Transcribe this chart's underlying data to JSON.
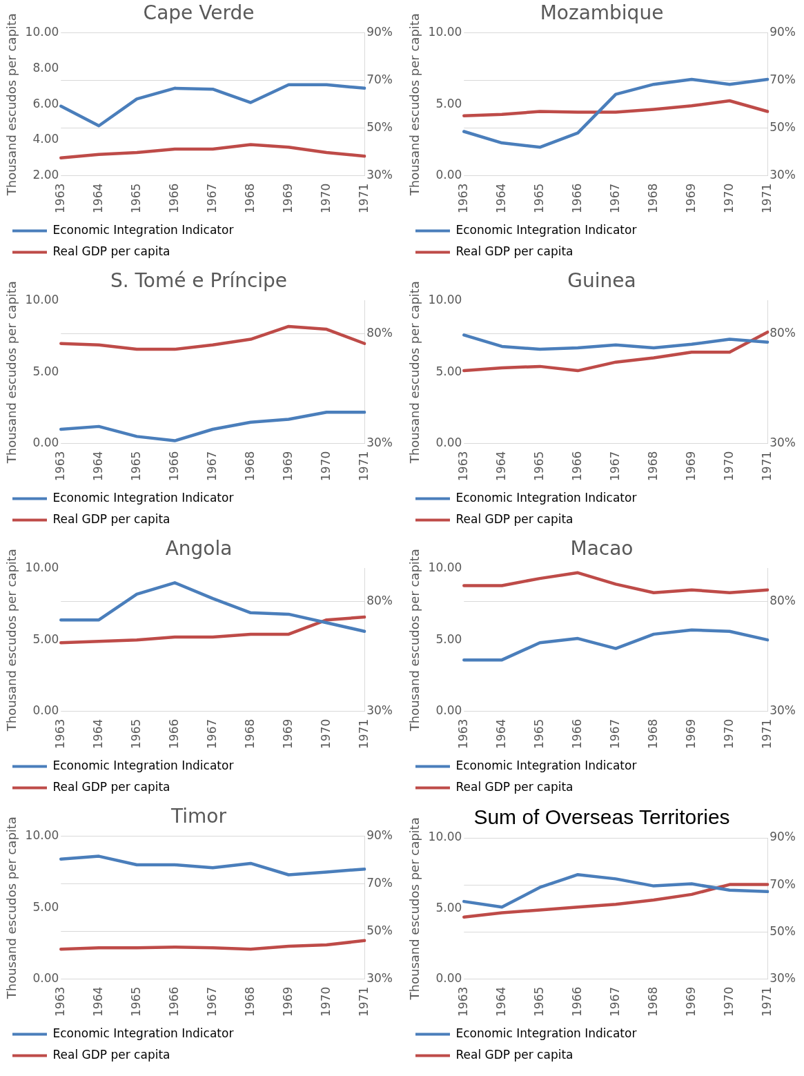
{
  "chart_data": [
    {
      "type": "line",
      "title": "Cape Verde",
      "ylabel": "Thousand escudos per capita",
      "categories": [
        "1963",
        "1964",
        "1965",
        "1966",
        "1967",
        "1968",
        "1969",
        "1970",
        "1971"
      ],
      "series": [
        {
          "name": "Economic Integration Indicator",
          "color": "#4a7ebb",
          "values": [
            5.9,
            4.8,
            6.3,
            6.9,
            6.85,
            6.1,
            7.1,
            7.1,
            6.9
          ]
        },
        {
          "name": "Real GDP per capita",
          "color": "#be4b48",
          "values": [
            3.0,
            3.2,
            3.3,
            3.5,
            3.5,
            3.75,
            3.6,
            3.3,
            3.1
          ]
        }
      ],
      "ylim": [
        2,
        10
      ],
      "yticks": [
        {
          "value": 2,
          "label": "2.00"
        },
        {
          "value": 4,
          "label": "4.00"
        },
        {
          "value": 6,
          "label": "6.00"
        },
        {
          "value": 8,
          "label": "8.00"
        },
        {
          "value": 10,
          "label": "10.00"
        }
      ],
      "y2lim": [
        30,
        90
      ],
      "y2ticks": [
        {
          "value": 30,
          "label": "30%"
        },
        {
          "value": 50,
          "label": "50%"
        },
        {
          "value": 70,
          "label": "70%"
        },
        {
          "value": 90,
          "label": "90%"
        }
      ],
      "grid": true,
      "legend": "bottom",
      "marker": "none",
      "line_style": "solid"
    },
    {
      "type": "line",
      "title": "Mozambique",
      "ylabel": "Thousand escudos per capita",
      "categories": [
        "1963",
        "1964",
        "1965",
        "1966",
        "1967",
        "1968",
        "1969",
        "1970",
        "1971"
      ],
      "series": [
        {
          "name": "Economic Integration Indicator",
          "color": "#4a7ebb",
          "values": [
            3.1,
            2.3,
            2.0,
            3.0,
            5.7,
            6.4,
            6.75,
            6.4,
            6.75
          ]
        },
        {
          "name": "Real GDP per capita",
          "color": "#be4b48",
          "values": [
            4.2,
            4.3,
            4.5,
            4.45,
            4.45,
            4.65,
            4.9,
            5.25,
            4.5
          ]
        }
      ],
      "ylim": [
        0,
        10
      ],
      "yticks": [
        {
          "value": 0,
          "label": "0.00"
        },
        {
          "value": 5,
          "label": "5.00"
        },
        {
          "value": 10,
          "label": "10.00"
        }
      ],
      "y2lim": [
        30,
        90
      ],
      "y2ticks": [
        {
          "value": 30,
          "label": "30%"
        },
        {
          "value": 50,
          "label": "50%"
        },
        {
          "value": 70,
          "label": "70%"
        },
        {
          "value": 90,
          "label": "90%"
        }
      ],
      "grid": true,
      "legend": "bottom",
      "marker": "none",
      "line_style": "solid"
    },
    {
      "type": "line",
      "title": "S. Tomé e Príncipe",
      "ylabel": "Thousand escudos per capita",
      "categories": [
        "1963",
        "1964",
        "1965",
        "1966",
        "1967",
        "1968",
        "1969",
        "1970",
        "1971"
      ],
      "series": [
        {
          "name": "Economic Integration Indicator",
          "color": "#4a7ebb",
          "values": [
            1.0,
            1.2,
            0.5,
            0.2,
            1.0,
            1.5,
            1.7,
            2.2,
            2.2
          ]
        },
        {
          "name": "Real GDP per capita",
          "color": "#be4b48",
          "values": [
            7.0,
            6.9,
            6.6,
            6.6,
            6.9,
            7.3,
            8.2,
            8.0,
            7.0
          ]
        }
      ],
      "ylim": [
        0,
        10
      ],
      "yticks": [
        {
          "value": 0,
          "label": "0.00"
        },
        {
          "value": 5,
          "label": "5.00"
        },
        {
          "value": 10,
          "label": "10.00"
        }
      ],
      "y2lim": [
        30,
        95
      ],
      "y2ticks": [
        {
          "value": 30,
          "label": "30%"
        },
        {
          "value": 80,
          "label": "80%"
        }
      ],
      "grid": true,
      "legend": "bottom",
      "marker": "none",
      "line_style": "solid"
    },
    {
      "type": "line",
      "title": "Guinea",
      "ylabel": "Thousand escudos per capita",
      "categories": [
        "1963",
        "1964",
        "1965",
        "1966",
        "1967",
        "1968",
        "1969",
        "1970",
        "1971"
      ],
      "series": [
        {
          "name": "Economic Integration Indicator",
          "color": "#4a7ebb",
          "values": [
            7.6,
            6.8,
            6.6,
            6.7,
            6.9,
            6.7,
            6.95,
            7.3,
            7.1
          ]
        },
        {
          "name": "Real GDP per capita",
          "color": "#be4b48",
          "values": [
            5.1,
            5.3,
            5.4,
            5.1,
            5.7,
            6.0,
            6.4,
            6.4,
            7.8
          ]
        }
      ],
      "ylim": [
        0,
        10
      ],
      "yticks": [
        {
          "value": 0,
          "label": "0.00"
        },
        {
          "value": 5,
          "label": "5.00"
        },
        {
          "value": 10,
          "label": "10.00"
        }
      ],
      "y2lim": [
        30,
        95
      ],
      "y2ticks": [
        {
          "value": 30,
          "label": "30%"
        },
        {
          "value": 80,
          "label": "80%"
        }
      ],
      "grid": true,
      "legend": "bottom",
      "marker": "none",
      "line_style": "solid"
    },
    {
      "type": "line",
      "title": "Angola",
      "ylabel": "Thousand escudos per capita",
      "categories": [
        "1963",
        "1964",
        "1965",
        "1966",
        "1967",
        "1968",
        "1969",
        "1970",
        "1971"
      ],
      "series": [
        {
          "name": "Economic Integration Indicator",
          "color": "#4a7ebb",
          "values": [
            6.4,
            6.4,
            8.2,
            9.0,
            7.9,
            6.9,
            6.8,
            6.2,
            5.6
          ]
        },
        {
          "name": "Real GDP per capita",
          "color": "#be4b48",
          "values": [
            4.8,
            4.9,
            5.0,
            5.2,
            5.2,
            5.4,
            5.4,
            6.4,
            6.6
          ]
        }
      ],
      "ylim": [
        0,
        10
      ],
      "yticks": [
        {
          "value": 0,
          "label": "0.00"
        },
        {
          "value": 5,
          "label": "5.00"
        },
        {
          "value": 10,
          "label": "10.00"
        }
      ],
      "y2lim": [
        30,
        95
      ],
      "y2ticks": [
        {
          "value": 30,
          "label": "30%"
        },
        {
          "value": 80,
          "label": "80%"
        }
      ],
      "grid": true,
      "legend": "bottom",
      "marker": "none",
      "line_style": "solid"
    },
    {
      "type": "line",
      "title": "Macao",
      "ylabel": "Thousand escudos per capita",
      "categories": [
        "1963",
        "1964",
        "1965",
        "1966",
        "1967",
        "1968",
        "1969",
        "1970",
        "1971"
      ],
      "series": [
        {
          "name": "Economic Integration Indicator",
          "color": "#4a7ebb",
          "values": [
            3.6,
            3.6,
            4.8,
            5.1,
            4.4,
            5.4,
            5.7,
            5.6,
            5.0
          ]
        },
        {
          "name": "Real GDP per capita",
          "color": "#be4b48",
          "values": [
            8.8,
            8.8,
            9.3,
            9.7,
            8.9,
            8.3,
            8.5,
            8.3,
            8.5
          ]
        }
      ],
      "ylim": [
        0,
        10
      ],
      "yticks": [
        {
          "value": 0,
          "label": "0.00"
        },
        {
          "value": 5,
          "label": "5.00"
        },
        {
          "value": 10,
          "label": "10.00"
        }
      ],
      "y2lim": [
        30,
        95
      ],
      "y2ticks": [
        {
          "value": 30,
          "label": "30%"
        },
        {
          "value": 80,
          "label": "80%"
        }
      ],
      "grid": true,
      "legend": "bottom",
      "marker": "none",
      "line_style": "solid"
    },
    {
      "type": "line",
      "title": "Timor",
      "ylabel": "Thousand escudos per capita",
      "categories": [
        "1963",
        "1964",
        "1965",
        "1966",
        "1967",
        "1968",
        "1969",
        "1970",
        "1971"
      ],
      "series": [
        {
          "name": "Economic Integration Indicator",
          "color": "#4a7ebb",
          "values": [
            8.4,
            8.6,
            8.0,
            8.0,
            7.8,
            8.1,
            7.3,
            7.5,
            7.7
          ]
        },
        {
          "name": "Real GDP per capita",
          "color": "#be4b48",
          "values": [
            2.1,
            2.2,
            2.2,
            2.25,
            2.2,
            2.1,
            2.3,
            2.4,
            2.7
          ]
        }
      ],
      "ylim": [
        0,
        10
      ],
      "yticks": [
        {
          "value": 0,
          "label": "0.00"
        },
        {
          "value": 5,
          "label": "5.00"
        },
        {
          "value": 10,
          "label": "10.00"
        }
      ],
      "y2lim": [
        30,
        90
      ],
      "y2ticks": [
        {
          "value": 30,
          "label": "30%"
        },
        {
          "value": 50,
          "label": "50%"
        },
        {
          "value": 70,
          "label": "70%"
        },
        {
          "value": 90,
          "label": "90%"
        }
      ],
      "grid": true,
      "legend": "bottom",
      "marker": "none",
      "line_style": "solid"
    },
    {
      "type": "line",
      "title": "Sum of Overseas Territories",
      "ylabel": "Thousand escudos per capita",
      "categories": [
        "1963",
        "1964",
        "1965",
        "1966",
        "1967",
        "1968",
        "1969",
        "1970",
        "1971"
      ],
      "series": [
        {
          "name": "Economic Integration Indicator",
          "color": "#4a7ebb",
          "values": [
            5.5,
            5.1,
            6.5,
            7.4,
            7.1,
            6.6,
            6.75,
            6.3,
            6.2
          ]
        },
        {
          "name": "Real GDP per capita",
          "color": "#be4b48",
          "values": [
            4.4,
            4.7,
            4.9,
            5.1,
            5.3,
            5.6,
            6.0,
            6.7,
            6.7
          ]
        }
      ],
      "ylim": [
        0,
        10
      ],
      "yticks": [
        {
          "value": 0,
          "label": "0.00"
        },
        {
          "value": 5,
          "label": "5.00"
        },
        {
          "value": 10,
          "label": "10.00"
        }
      ],
      "y2lim": [
        30,
        90
      ],
      "y2ticks": [
        {
          "value": 30,
          "label": "30%"
        },
        {
          "value": 50,
          "label": "50%"
        },
        {
          "value": 70,
          "label": "70%"
        },
        {
          "value": 90,
          "label": "90%"
        }
      ],
      "grid": true,
      "legend": "bottom",
      "marker": "none",
      "line_style": "solid"
    }
  ]
}
